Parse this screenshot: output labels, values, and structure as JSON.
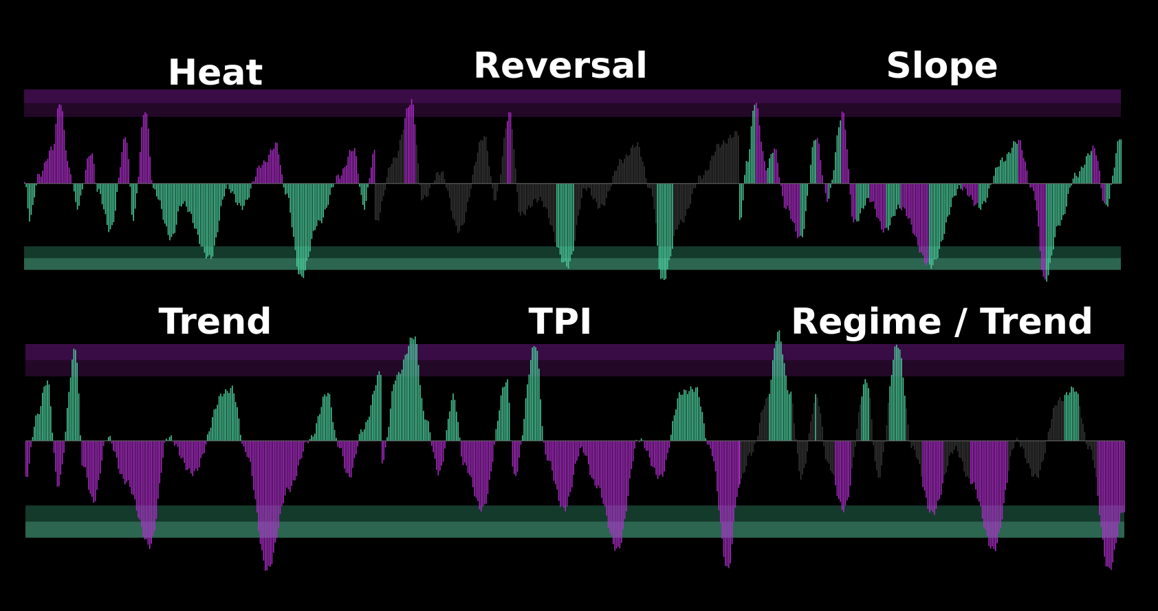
{
  "colors": {
    "background": "#000000",
    "magenta": "#b32fd0",
    "teal": "#4ed6a3",
    "gray": "#3a3a3a",
    "band_top_outer": "#3a0c45",
    "band_top_inner": "#240828",
    "band_bottom_outer": "#143a2c",
    "band_bottom_inner": "#2c6650",
    "zero_line": "#6a6a6a"
  },
  "chart_data": [
    {
      "type": "bar",
      "title": "Heat",
      "ylim": [
        -1.3,
        1.2
      ],
      "bands": {
        "upper": [
          0.85,
          1.2
        ],
        "lower": [
          -1.1,
          -0.8
        ]
      },
      "color_rule": "positive_magenta_negative_teal",
      "profile": [
        [
          0,
          0.02
        ],
        [
          0.015,
          -0.45
        ],
        [
          0.04,
          0.1
        ],
        [
          0.08,
          0.45
        ],
        [
          0.1,
          1.05
        ],
        [
          0.13,
          0.15
        ],
        [
          0.15,
          -0.3
        ],
        [
          0.19,
          0.4
        ],
        [
          0.21,
          -0.1
        ],
        [
          0.245,
          -0.6
        ],
        [
          0.29,
          0.6
        ],
        [
          0.31,
          -0.45
        ],
        [
          0.345,
          0.95
        ],
        [
          0.37,
          -0.1
        ],
        [
          0.42,
          -0.7
        ],
        [
          0.45,
          -0.25
        ],
        [
          0.53,
          -0.95
        ],
        [
          0.58,
          -0.05
        ],
        [
          0.62,
          -0.3
        ],
        [
          0.68,
          0.25
        ],
        [
          0.72,
          0.5
        ],
        [
          0.745,
          -0.1
        ],
        [
          0.79,
          -1.2
        ],
        [
          0.84,
          -0.5
        ],
        [
          0.9,
          0.1
        ],
        [
          0.94,
          0.45
        ],
        [
          0.97,
          -0.3
        ],
        [
          1,
          0.4
        ]
      ]
    },
    {
      "type": "bar",
      "title": "Reversal",
      "ylim": [
        -1.3,
        1.2
      ],
      "bands": {
        "upper": [
          0.85,
          1.2
        ],
        "lower": [
          -1.1,
          -0.8
        ]
      },
      "color_rule": "extremes_highlighted",
      "profile": [
        [
          0,
          -0.5
        ],
        [
          0.05,
          0.3
        ],
        [
          0.1,
          1.05
        ],
        [
          0.13,
          -0.2
        ],
        [
          0.18,
          0.15
        ],
        [
          0.23,
          -0.6
        ],
        [
          0.3,
          0.6
        ],
        [
          0.33,
          -0.2
        ],
        [
          0.37,
          0.9
        ],
        [
          0.4,
          -0.4
        ],
        [
          0.45,
          -0.2
        ],
        [
          0.53,
          -1.05
        ],
        [
          0.58,
          -0.05
        ],
        [
          0.62,
          -0.3
        ],
        [
          0.68,
          0.3
        ],
        [
          0.72,
          0.5
        ],
        [
          0.76,
          -0.1
        ],
        [
          0.79,
          -1.25
        ],
        [
          0.84,
          -0.5
        ],
        [
          0.9,
          0.1
        ],
        [
          0.95,
          0.5
        ],
        [
          1,
          0.65
        ]
      ]
    },
    {
      "type": "bar",
      "title": "Slope",
      "ylim": [
        -1.3,
        1.2
      ],
      "bands": {
        "upper": [
          0.85,
          1.2
        ],
        "lower": [
          -1.1,
          -0.8
        ]
      },
      "color_rule": "slope",
      "profile": [
        [
          0,
          -0.5
        ],
        [
          0.02,
          0.3
        ],
        [
          0.04,
          1.05
        ],
        [
          0.07,
          0.2
        ],
        [
          0.09,
          0.45
        ],
        [
          0.12,
          -0.3
        ],
        [
          0.16,
          -0.7
        ],
        [
          0.2,
          0.6
        ],
        [
          0.23,
          -0.2
        ],
        [
          0.27,
          0.9
        ],
        [
          0.3,
          -0.5
        ],
        [
          0.34,
          -0.2
        ],
        [
          0.38,
          -0.6
        ],
        [
          0.42,
          -0.3
        ],
        [
          0.5,
          -1.05
        ],
        [
          0.58,
          -0.05
        ],
        [
          0.63,
          -0.3
        ],
        [
          0.69,
          0.3
        ],
        [
          0.73,
          0.55
        ],
        [
          0.77,
          -0.1
        ],
        [
          0.8,
          -1.25
        ],
        [
          0.84,
          -0.5
        ],
        [
          0.88,
          0.1
        ],
        [
          0.93,
          0.45
        ],
        [
          0.96,
          -0.3
        ],
        [
          1,
          0.6
        ]
      ]
    },
    {
      "type": "bar",
      "title": "Trend",
      "ylim": [
        -1.4,
        1.2
      ],
      "bands": {
        "upper": [
          0.8,
          1.2
        ],
        "lower": [
          -1.2,
          -0.8
        ]
      },
      "color_rule": "positive_teal_negative_magenta",
      "profile": [
        [
          0,
          -0.45
        ],
        [
          0.03,
          0.3
        ],
        [
          0.06,
          0.75
        ],
        [
          0.09,
          -0.55
        ],
        [
          0.14,
          1.15
        ],
        [
          0.16,
          -0.3
        ],
        [
          0.19,
          -0.75
        ],
        [
          0.23,
          0.05
        ],
        [
          0.28,
          -0.5
        ],
        [
          0.35,
          -1.3
        ],
        [
          0.4,
          0.05
        ],
        [
          0.47,
          -0.4
        ],
        [
          0.56,
          0.6
        ],
        [
          0.58,
          0.65
        ],
        [
          0.62,
          -0.15
        ],
        [
          0.68,
          -1.6
        ],
        [
          0.74,
          -0.6
        ],
        [
          0.8,
          0.02
        ],
        [
          0.85,
          0.6
        ],
        [
          0.88,
          -0.05
        ],
        [
          0.91,
          -0.45
        ],
        [
          0.95,
          0.15
        ],
        [
          1,
          0.85
        ]
      ]
    },
    {
      "type": "bar",
      "title": "TPI",
      "ylim": [
        -1.4,
        1.2
      ],
      "bands": {
        "upper": [
          0.8,
          1.2
        ],
        "lower": [
          -1.2,
          -0.8
        ]
      },
      "color_rule": "positive_teal_negative_magenta",
      "profile": [
        [
          0,
          -0.25
        ],
        [
          0.04,
          0.8
        ],
        [
          0.09,
          1.3
        ],
        [
          0.12,
          0.3
        ],
        [
          0.16,
          -0.4
        ],
        [
          0.2,
          0.55
        ],
        [
          0.23,
          -0.3
        ],
        [
          0.28,
          -0.85
        ],
        [
          0.35,
          0.75
        ],
        [
          0.37,
          -0.45
        ],
        [
          0.43,
          1.2
        ],
        [
          0.46,
          -0.2
        ],
        [
          0.51,
          -0.85
        ],
        [
          0.56,
          -0.1
        ],
        [
          0.6,
          -0.55
        ],
        [
          0.66,
          -1.35
        ],
        [
          0.72,
          0.02
        ],
        [
          0.78,
          -0.45
        ],
        [
          0.84,
          0.6
        ],
        [
          0.88,
          0.65
        ],
        [
          0.92,
          -0.1
        ],
        [
          0.97,
          -1.6
        ],
        [
          1,
          -0.6
        ]
      ]
    },
    {
      "type": "bar",
      "title": "Regime / Trend",
      "ylim": [
        -1.4,
        1.2
      ],
      "bands": {
        "upper": [
          0.8,
          1.2
        ],
        "lower": [
          -1.2,
          -0.8
        ]
      },
      "color_rule": "regime",
      "profile": [
        [
          0,
          -0.5
        ],
        [
          0.03,
          -0.15
        ],
        [
          0.07,
          0.5
        ],
        [
          0.1,
          1.35
        ],
        [
          0.13,
          0.6
        ],
        [
          0.16,
          -0.45
        ],
        [
          0.2,
          0.55
        ],
        [
          0.23,
          -0.3
        ],
        [
          0.27,
          -0.85
        ],
        [
          0.33,
          0.75
        ],
        [
          0.36,
          -0.45
        ],
        [
          0.41,
          1.2
        ],
        [
          0.45,
          -0.1
        ],
        [
          0.5,
          -0.9
        ],
        [
          0.56,
          -0.1
        ],
        [
          0.6,
          -0.5
        ],
        [
          0.66,
          -1.35
        ],
        [
          0.72,
          0.0
        ],
        [
          0.77,
          -0.45
        ],
        [
          0.83,
          0.5
        ],
        [
          0.87,
          0.65
        ],
        [
          0.91,
          -0.1
        ],
        [
          0.96,
          -1.6
        ],
        [
          1,
          -0.85
        ]
      ]
    }
  ]
}
